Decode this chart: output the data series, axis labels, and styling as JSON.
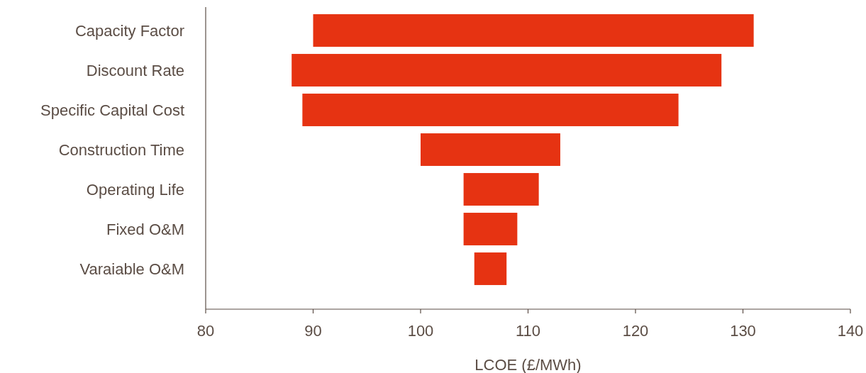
{
  "chart_data": {
    "type": "bar",
    "orientation": "horizontal",
    "xlabel": "LCOE (£/MWh)",
    "categories": [
      "Capacity Factor",
      "Discount Rate",
      "Specific Capital Cost",
      "Construction Time",
      "Operating Life",
      "Fixed O&M",
      "Varaiable O&M"
    ],
    "base": [
      90,
      88,
      89,
      100,
      104,
      104,
      105
    ],
    "values": [
      41,
      40,
      35,
      13,
      7,
      5,
      3
    ],
    "color": "#e63312",
    "xlim": [
      80,
      140
    ],
    "xticks": [
      80,
      90,
      100,
      110,
      120,
      130,
      140
    ],
    "grid": false
  }
}
